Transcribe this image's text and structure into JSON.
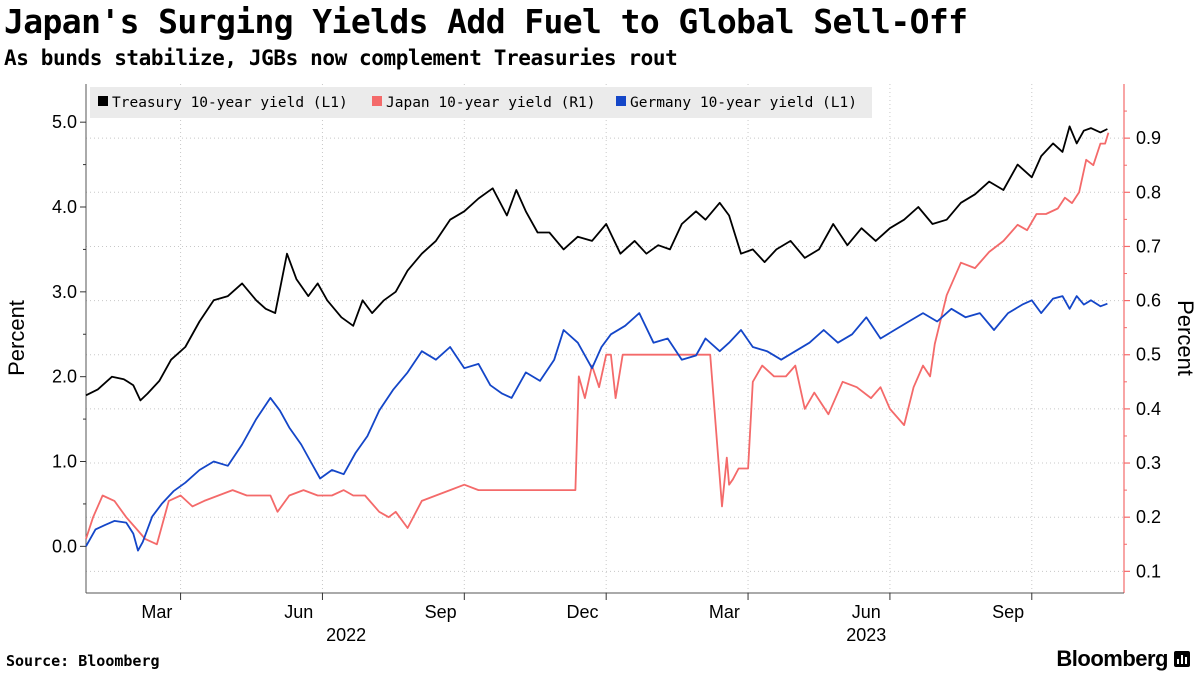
{
  "chart_data": {
    "type": "line",
    "title": "Japan's Surging Yields Add Fuel to Global Sell-Off",
    "subtitle": "As bunds stabilize, JGBs now complement Treasuries rout",
    "source": "Source: Bloomberg",
    "brand": "Bloomberg",
    "ylabel_left": "Percent",
    "ylabel_right": "Percent",
    "ylim_left": [
      -0.55,
      5.45
    ],
    "ylim_right": [
      0.06,
      1.0
    ],
    "x_range": [
      0,
      21.95
    ],
    "left_ticks": [
      {
        "value": 0.0,
        "label": "0.0"
      },
      {
        "value": 1.0,
        "label": "1.0"
      },
      {
        "value": 2.0,
        "label": "2.0"
      },
      {
        "value": 3.0,
        "label": "3.0"
      },
      {
        "value": 4.0,
        "label": "4.0"
      },
      {
        "value": 5.0,
        "label": "5.0"
      }
    ],
    "right_ticks": [
      {
        "value": 0.1,
        "label": "0.1"
      },
      {
        "value": 0.2,
        "label": "0.2"
      },
      {
        "value": 0.3,
        "label": "0.3"
      },
      {
        "value": 0.4,
        "label": "0.4"
      },
      {
        "value": 0.5,
        "label": "0.5"
      },
      {
        "value": 0.6,
        "label": "0.6"
      },
      {
        "value": 0.7,
        "label": "0.7"
      },
      {
        "value": 0.8,
        "label": "0.8"
      },
      {
        "value": 0.9,
        "label": "0.9"
      }
    ],
    "month_boundaries": [
      2,
      5,
      8,
      11,
      14,
      17,
      20
    ],
    "x_ticks": [
      {
        "value": 1.5,
        "label": "Mar"
      },
      {
        "value": 4.5,
        "label": "Jun"
      },
      {
        "value": 7.5,
        "label": "Sep"
      },
      {
        "value": 10.5,
        "label": "Dec"
      },
      {
        "value": 13.5,
        "label": "Mar"
      },
      {
        "value": 16.5,
        "label": "Jun"
      },
      {
        "value": 19.5,
        "label": "Sep"
      }
    ],
    "year_labels": [
      {
        "value": 5.5,
        "label": "2022"
      },
      {
        "value": 16.5,
        "label": "2023"
      }
    ],
    "legend": [
      {
        "label": "Treasury 10-year yield (L1)",
        "color": "#000000"
      },
      {
        "label": "Japan 10-year yield (R1)",
        "color": "#f46a6a"
      },
      {
        "label": "Germany 10-year yield (L1)",
        "color": "#1446c8"
      }
    ],
    "series": [
      {
        "name": "Treasury 10-year yield (L1)",
        "axis": "left",
        "color": "#000000",
        "x": [
          0.0,
          0.25,
          0.55,
          0.8,
          1.0,
          1.15,
          1.3,
          1.55,
          1.8,
          2.1,
          2.4,
          2.7,
          3.0,
          3.3,
          3.6,
          3.8,
          4.0,
          4.25,
          4.45,
          4.7,
          4.9,
          5.1,
          5.4,
          5.65,
          5.85,
          6.05,
          6.3,
          6.55,
          6.8,
          7.1,
          7.4,
          7.7,
          8.0,
          8.3,
          8.6,
          8.9,
          9.1,
          9.3,
          9.55,
          9.8,
          10.1,
          10.4,
          10.7,
          11.0,
          11.3,
          11.6,
          11.85,
          12.1,
          12.35,
          12.6,
          12.9,
          13.1,
          13.4,
          13.6,
          13.85,
          14.1,
          14.35,
          14.6,
          14.9,
          15.2,
          15.5,
          15.8,
          16.1,
          16.4,
          16.7,
          17.0,
          17.3,
          17.6,
          17.9,
          18.2,
          18.5,
          18.8,
          19.1,
          19.4,
          19.7,
          20.0,
          20.2,
          20.45,
          20.65,
          20.8,
          20.95,
          21.1,
          21.25,
          21.45,
          21.6
        ],
        "y": [
          1.78,
          1.85,
          2.0,
          1.97,
          1.9,
          1.72,
          1.8,
          1.95,
          2.2,
          2.35,
          2.65,
          2.9,
          2.95,
          3.1,
          2.9,
          2.8,
          2.75,
          3.45,
          3.15,
          2.95,
          3.1,
          2.9,
          2.7,
          2.6,
          2.9,
          2.75,
          2.9,
          3.0,
          3.25,
          3.45,
          3.6,
          3.85,
          3.95,
          4.1,
          4.22,
          3.9,
          4.2,
          3.95,
          3.7,
          3.7,
          3.5,
          3.65,
          3.6,
          3.8,
          3.45,
          3.6,
          3.45,
          3.55,
          3.5,
          3.8,
          3.95,
          3.85,
          4.05,
          3.9,
          3.45,
          3.5,
          3.35,
          3.5,
          3.6,
          3.4,
          3.5,
          3.8,
          3.55,
          3.75,
          3.6,
          3.75,
          3.85,
          4.0,
          3.8,
          3.85,
          4.05,
          4.15,
          4.3,
          4.2,
          4.5,
          4.35,
          4.6,
          4.75,
          4.65,
          4.95,
          4.75,
          4.9,
          4.93,
          4.88,
          4.92
        ]
      },
      {
        "name": "Japan 10-year yield (R1)",
        "axis": "right",
        "color": "#f46a6a",
        "x": [
          0.0,
          0.15,
          0.35,
          0.6,
          0.85,
          1.05,
          1.25,
          1.5,
          1.75,
          2.0,
          2.25,
          2.5,
          2.8,
          3.1,
          3.4,
          3.7,
          3.9,
          4.05,
          4.3,
          4.6,
          4.9,
          5.2,
          5.45,
          5.65,
          5.9,
          6.2,
          6.4,
          6.55,
          6.8,
          7.1,
          7.4,
          7.7,
          8.0,
          8.3,
          8.6,
          8.9,
          9.2,
          9.5,
          9.8,
          10.1,
          10.35,
          10.42,
          10.55,
          10.7,
          10.85,
          11.0,
          11.1,
          11.2,
          11.35,
          11.5,
          11.7,
          12.0,
          12.4,
          12.8,
          13.2,
          13.45,
          13.55,
          13.6,
          13.68,
          13.8,
          14.0,
          14.1,
          14.3,
          14.55,
          14.8,
          15.0,
          15.2,
          15.4,
          15.7,
          16.0,
          16.3,
          16.6,
          16.8,
          17.0,
          17.3,
          17.5,
          17.7,
          17.85,
          17.95,
          18.2,
          18.5,
          18.8,
          19.1,
          19.4,
          19.7,
          19.9,
          20.1,
          20.3,
          20.55,
          20.7,
          20.85,
          21.0,
          21.15,
          21.3,
          21.45,
          21.55,
          21.62
        ],
        "y": [
          0.16,
          0.2,
          0.24,
          0.23,
          0.2,
          0.18,
          0.16,
          0.15,
          0.23,
          0.24,
          0.22,
          0.23,
          0.24,
          0.25,
          0.24,
          0.24,
          0.24,
          0.21,
          0.24,
          0.25,
          0.24,
          0.24,
          0.25,
          0.24,
          0.24,
          0.21,
          0.2,
          0.21,
          0.18,
          0.23,
          0.24,
          0.25,
          0.26,
          0.25,
          0.25,
          0.25,
          0.25,
          0.25,
          0.25,
          0.25,
          0.25,
          0.46,
          0.42,
          0.48,
          0.44,
          0.5,
          0.5,
          0.42,
          0.5,
          0.5,
          0.5,
          0.5,
          0.5,
          0.5,
          0.5,
          0.22,
          0.31,
          0.26,
          0.27,
          0.29,
          0.29,
          0.45,
          0.48,
          0.46,
          0.46,
          0.48,
          0.4,
          0.43,
          0.39,
          0.45,
          0.44,
          0.42,
          0.44,
          0.4,
          0.37,
          0.44,
          0.48,
          0.46,
          0.52,
          0.61,
          0.67,
          0.66,
          0.69,
          0.71,
          0.74,
          0.73,
          0.76,
          0.76,
          0.77,
          0.79,
          0.78,
          0.8,
          0.86,
          0.85,
          0.89,
          0.89,
          0.91
        ]
      },
      {
        "name": "Germany 10-year yield (L1)",
        "axis": "left",
        "color": "#1446c8",
        "x": [
          0.0,
          0.2,
          0.4,
          0.6,
          0.85,
          1.0,
          1.1,
          1.2,
          1.4,
          1.6,
          1.85,
          2.1,
          2.4,
          2.7,
          3.0,
          3.3,
          3.6,
          3.9,
          4.1,
          4.3,
          4.55,
          4.75,
          4.95,
          5.2,
          5.45,
          5.7,
          5.95,
          6.2,
          6.5,
          6.8,
          7.1,
          7.4,
          7.7,
          8.0,
          8.3,
          8.55,
          8.8,
          9.0,
          9.3,
          9.6,
          9.9,
          10.1,
          10.4,
          10.7,
          10.9,
          11.1,
          11.4,
          11.7,
          12.0,
          12.3,
          12.6,
          12.9,
          13.1,
          13.4,
          13.6,
          13.85,
          14.1,
          14.4,
          14.7,
          15.0,
          15.3,
          15.6,
          15.9,
          16.2,
          16.5,
          16.8,
          17.1,
          17.4,
          17.7,
          18.0,
          18.3,
          18.6,
          18.9,
          19.2,
          19.5,
          19.8,
          20.0,
          20.2,
          20.45,
          20.65,
          20.8,
          20.95,
          21.1,
          21.25,
          21.45,
          21.6
        ],
        "y": [
          0.0,
          0.2,
          0.25,
          0.3,
          0.28,
          0.15,
          -0.05,
          0.05,
          0.35,
          0.5,
          0.65,
          0.75,
          0.9,
          1.0,
          0.95,
          1.2,
          1.5,
          1.75,
          1.6,
          1.4,
          1.2,
          1.0,
          0.8,
          0.9,
          0.85,
          1.1,
          1.3,
          1.6,
          1.85,
          2.05,
          2.3,
          2.2,
          2.35,
          2.1,
          2.15,
          1.9,
          1.8,
          1.75,
          2.05,
          1.95,
          2.2,
          2.55,
          2.4,
          2.1,
          2.35,
          2.5,
          2.6,
          2.75,
          2.4,
          2.45,
          2.2,
          2.25,
          2.45,
          2.3,
          2.4,
          2.55,
          2.35,
          2.3,
          2.2,
          2.3,
          2.4,
          2.55,
          2.4,
          2.5,
          2.7,
          2.45,
          2.55,
          2.65,
          2.75,
          2.65,
          2.8,
          2.7,
          2.75,
          2.55,
          2.75,
          2.85,
          2.9,
          2.75,
          2.92,
          2.95,
          2.8,
          2.95,
          2.85,
          2.9,
          2.83,
          2.86
        ]
      }
    ]
  }
}
